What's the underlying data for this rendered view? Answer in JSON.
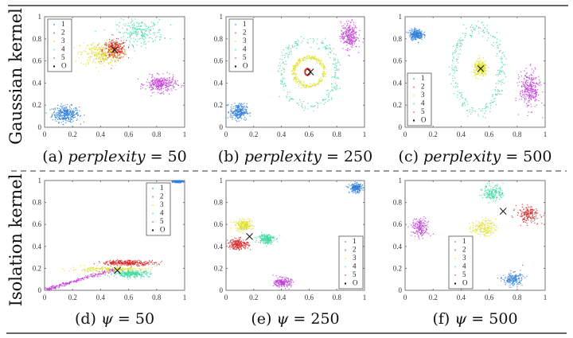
{
  "row_labels": [
    "Gaussian kernel",
    "Isolation kernel"
  ],
  "legend_entries": [
    "1",
    "2",
    "3",
    "4",
    "5",
    "O"
  ],
  "colors": {
    "1": "#2f7fd8",
    "2": "#d62a2a",
    "3": "#dede2a",
    "4": "#3ed9a0",
    "5": "#c23fd8",
    "O": "#111111"
  },
  "chart_data": [
    {
      "id": "a",
      "type": "scatter",
      "caption_prefix": "(a) ",
      "caption_var": "perplexity",
      "caption_suffix": " = 50",
      "xlim": [
        0,
        1
      ],
      "ylim": [
        0,
        1
      ],
      "xticks": [
        "0",
        "0.2",
        "0.4",
        "0.6",
        "0.8",
        "1"
      ],
      "yticks": [
        "0",
        "0.2",
        "0.4",
        "0.6",
        "0.8",
        "1"
      ],
      "legend": "top-left",
      "series": [
        {
          "name": "1",
          "shape": "blob",
          "center": [
            0.15,
            0.12
          ],
          "spread": [
            0.08,
            0.06
          ],
          "n": 320
        },
        {
          "name": "2",
          "shape": "blob",
          "center": [
            0.5,
            0.7
          ],
          "spread": [
            0.07,
            0.07
          ],
          "n": 320
        },
        {
          "name": "3",
          "shape": "blob",
          "center": [
            0.4,
            0.66
          ],
          "spread": [
            0.12,
            0.09
          ],
          "n": 260
        },
        {
          "name": "4",
          "shape": "blob",
          "center": [
            0.68,
            0.86
          ],
          "spread": [
            0.14,
            0.09
          ],
          "n": 220
        },
        {
          "name": "5",
          "shape": "blob",
          "center": [
            0.83,
            0.39
          ],
          "spread": [
            0.09,
            0.06
          ],
          "n": 300
        }
      ],
      "outlier": [
        0.5,
        0.7
      ]
    },
    {
      "id": "b",
      "type": "scatter",
      "caption_prefix": "(b) ",
      "caption_var": "perplexity",
      "caption_suffix": " = 250",
      "xlim": [
        0,
        1
      ],
      "ylim": [
        0,
        1
      ],
      "xticks": [
        "0",
        "0.2",
        "0.4",
        "0.6",
        "0.8",
        "1"
      ],
      "yticks": [
        "0",
        "0.2",
        "0.4",
        "0.6",
        "0.8",
        "1"
      ],
      "legend": "top-left",
      "series": [
        {
          "name": "1",
          "shape": "blob",
          "center": [
            0.09,
            0.14
          ],
          "spread": [
            0.05,
            0.06
          ],
          "n": 260
        },
        {
          "name": "2",
          "shape": "ring",
          "center": [
            0.59,
            0.5
          ],
          "radius": [
            0.02,
            0.03
          ],
          "n": 120
        },
        {
          "name": "3",
          "shape": "ring",
          "center": [
            0.6,
            0.5
          ],
          "radius": [
            0.11,
            0.13
          ],
          "n": 300
        },
        {
          "name": "4",
          "shape": "ring",
          "center": [
            0.6,
            0.49
          ],
          "radius": [
            0.2,
            0.3
          ],
          "n": 240
        },
        {
          "name": "5",
          "shape": "blob",
          "center": [
            0.89,
            0.83
          ],
          "spread": [
            0.05,
            0.1
          ],
          "n": 280
        }
      ],
      "outlier": [
        0.61,
        0.5
      ]
    },
    {
      "id": "c",
      "type": "scatter",
      "caption_prefix": "(c) ",
      "caption_var": "perplexity",
      "caption_suffix": " = 500",
      "xlim": [
        0,
        1
      ],
      "ylim": [
        0,
        1
      ],
      "xticks": [
        "0",
        "0.2",
        "0.4",
        "0.6",
        "0.8",
        "1"
      ],
      "yticks": [
        "0",
        "0.2",
        "0.4",
        "0.6",
        "0.8",
        "1"
      ],
      "legend": "bottom-left",
      "series": [
        {
          "name": "1",
          "shape": "blob",
          "center": [
            0.08,
            0.84
          ],
          "spread": [
            0.04,
            0.04
          ],
          "n": 240
        },
        {
          "name": "2",
          "shape": "ring",
          "center": [
            0.54,
            0.53
          ],
          "radius": [
            0.01,
            0.01
          ],
          "n": 40
        },
        {
          "name": "3",
          "shape": "blob",
          "center": [
            0.54,
            0.53
          ],
          "spread": [
            0.04,
            0.06
          ],
          "n": 240
        },
        {
          "name": "4",
          "shape": "ring",
          "center": [
            0.52,
            0.52
          ],
          "radius": [
            0.17,
            0.38
          ],
          "n": 280
        },
        {
          "name": "5",
          "shape": "blob",
          "center": [
            0.89,
            0.34
          ],
          "spread": [
            0.06,
            0.14
          ],
          "n": 300
        }
      ],
      "outlier": [
        0.54,
        0.53
      ]
    },
    {
      "id": "d",
      "type": "scatter",
      "caption_prefix": "(d) ",
      "caption_var": "ψ",
      "caption_suffix": " = 50",
      "xlim": [
        0,
        1
      ],
      "ylim": [
        0,
        1
      ],
      "xticks": [
        "0",
        "0.2",
        "0.4",
        "0.6",
        "0.8",
        "1"
      ],
      "yticks": [
        "0",
        "0.2",
        "0.4",
        "0.6",
        "0.8",
        "1"
      ],
      "legend": "top-right",
      "series": [
        {
          "name": "1",
          "shape": "blob",
          "center": [
            0.95,
            0.99
          ],
          "spread": [
            0.03,
            0.008
          ],
          "n": 160
        },
        {
          "name": "2",
          "shape": "blob",
          "center": [
            0.6,
            0.25
          ],
          "spread": [
            0.16,
            0.02
          ],
          "n": 300
        },
        {
          "name": "3",
          "shape": "blob",
          "center": [
            0.45,
            0.19
          ],
          "spread": [
            0.22,
            0.02
          ],
          "n": 220
        },
        {
          "name": "4",
          "shape": "blob",
          "center": [
            0.62,
            0.15
          ],
          "spread": [
            0.11,
            0.025
          ],
          "n": 260
        },
        {
          "name": "5",
          "shape": "line",
          "from": [
            0.02,
            0.01
          ],
          "to": [
            0.5,
            0.19
          ],
          "n": 240
        }
      ],
      "outlier": [
        0.52,
        0.18
      ]
    },
    {
      "id": "e",
      "type": "scatter",
      "caption_prefix": "(e) ",
      "caption_var": "ψ",
      "caption_suffix": " = 250",
      "xlim": [
        0,
        1
      ],
      "ylim": [
        0,
        1
      ],
      "xticks": [
        "0",
        "0.2",
        "0.4",
        "0.6",
        "0.8",
        "1"
      ],
      "yticks": [
        "0",
        "0.2",
        "0.4",
        "0.6",
        "0.8",
        "1"
      ],
      "legend": "bottom-right",
      "series": [
        {
          "name": "1",
          "shape": "blob",
          "center": [
            0.94,
            0.93
          ],
          "spread": [
            0.04,
            0.035
          ],
          "n": 200
        },
        {
          "name": "2",
          "shape": "blob",
          "center": [
            0.09,
            0.42
          ],
          "spread": [
            0.06,
            0.04
          ],
          "n": 220
        },
        {
          "name": "3",
          "shape": "blob",
          "center": [
            0.13,
            0.59
          ],
          "spread": [
            0.05,
            0.04
          ],
          "n": 200
        },
        {
          "name": "4",
          "shape": "blob",
          "center": [
            0.29,
            0.47
          ],
          "spread": [
            0.05,
            0.04
          ],
          "n": 200
        },
        {
          "name": "5",
          "shape": "blob",
          "center": [
            0.41,
            0.07
          ],
          "spread": [
            0.05,
            0.035
          ],
          "n": 200
        }
      ],
      "outlier": [
        0.17,
        0.49
      ]
    },
    {
      "id": "f",
      "type": "scatter",
      "caption_prefix": "(f) ",
      "caption_var": "ψ",
      "caption_suffix": " = 500",
      "xlim": [
        0,
        1
      ],
      "ylim": [
        0,
        1
      ],
      "xticks": [
        "0",
        "0.2",
        "0.4",
        "0.6",
        "0.8",
        "1"
      ],
      "yticks": [
        "0",
        "0.2",
        "0.4",
        "0.6",
        "0.8",
        "1"
      ],
      "legend": "bottom-center",
      "series": [
        {
          "name": "1",
          "shape": "blob",
          "center": [
            0.77,
            0.1
          ],
          "spread": [
            0.06,
            0.05
          ],
          "n": 180
        },
        {
          "name": "2",
          "shape": "blob",
          "center": [
            0.88,
            0.69
          ],
          "spread": [
            0.07,
            0.06
          ],
          "n": 180
        },
        {
          "name": "3",
          "shape": "blob",
          "center": [
            0.56,
            0.57
          ],
          "spread": [
            0.07,
            0.06
          ],
          "n": 180
        },
        {
          "name": "4",
          "shape": "blob",
          "center": [
            0.63,
            0.89
          ],
          "spread": [
            0.06,
            0.06
          ],
          "n": 180
        },
        {
          "name": "5",
          "shape": "blob",
          "center": [
            0.11,
            0.57
          ],
          "spread": [
            0.05,
            0.07
          ],
          "n": 180
        }
      ],
      "outlier": [
        0.7,
        0.72
      ]
    }
  ]
}
